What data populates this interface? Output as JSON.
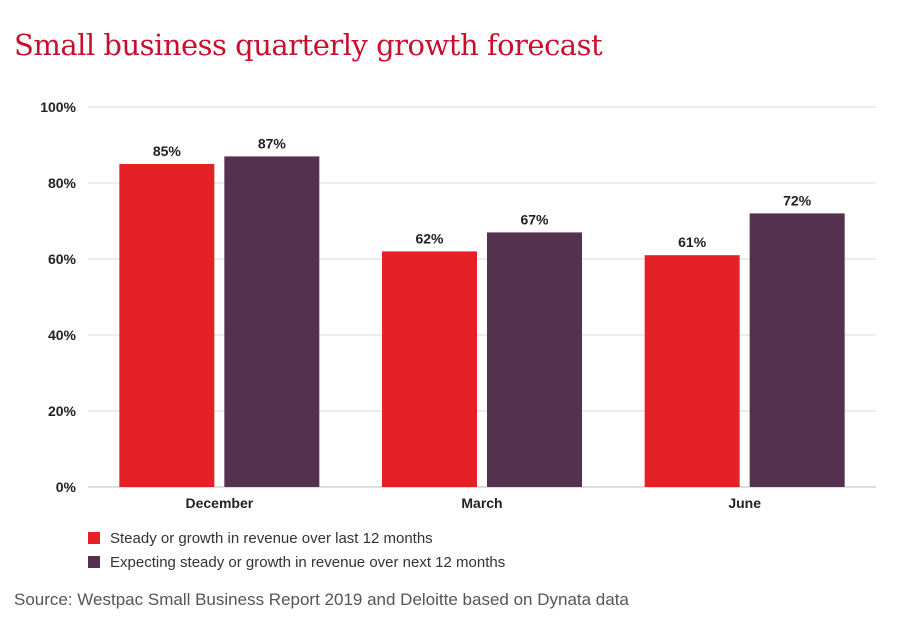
{
  "title": "Small business quarterly growth forecast",
  "source": "Source: Westpac Small Business Report 2019 and Deloitte based on Dynata data",
  "colors": {
    "series1": "#e32127",
    "series2": "#553150",
    "grid": "#d9d9d9",
    "title": "#c8102e"
  },
  "chart_data": {
    "type": "bar",
    "categories": [
      "December",
      "March",
      "June"
    ],
    "series": [
      {
        "name": "Steady or growth in revenue over last 12 months",
        "values": [
          85,
          62,
          61
        ],
        "labels": [
          "85%",
          "62%",
          "61%"
        ]
      },
      {
        "name": "Expecting steady or growth in revenue over next 12 months",
        "values": [
          87,
          67,
          72
        ],
        "labels": [
          "87%",
          "67%",
          "72%"
        ]
      }
    ],
    "ylim": [
      0,
      100
    ],
    "yticks": [
      "0%",
      "20%",
      "40%",
      "60%",
      "80%",
      "100%"
    ],
    "grid": true,
    "legend_position": "bottom-left"
  }
}
